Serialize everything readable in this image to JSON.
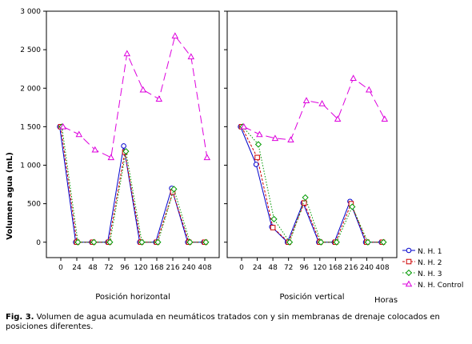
{
  "chart_data": {
    "type": "line",
    "ylabel": "Volumen agua (mL)",
    "x_unit_label": "Horas",
    "yticks": [
      "3 000",
      "2 500",
      "2 000",
      "1 500",
      "1 000",
      "500",
      "0"
    ],
    "ytick_values": [
      3000,
      2500,
      2000,
      1500,
      1000,
      500,
      0
    ],
    "ylim": [
      -200,
      3000
    ],
    "x_categories": [
      "0",
      "24",
      "48",
      "72",
      "96",
      "120",
      "168",
      "216",
      "240",
      "408"
    ],
    "series_names": [
      "N. H. 1",
      "N. H. 2",
      "N. H. 3",
      "N. H. Control"
    ],
    "series_colors": [
      "#0000cc",
      "#cc0000",
      "#009900",
      "#dd00dd"
    ],
    "legend_position": "bottom-right",
    "grid": false,
    "panels": [
      {
        "xlabel": "Posición horizontal",
        "series": [
          {
            "name": "N. H. 1",
            "values": [
              1500,
              0,
              0,
              0,
              1250,
              0,
              0,
              700,
              0,
              0
            ]
          },
          {
            "name": "N. H. 2",
            "values": [
              1500,
              0,
              0,
              0,
              1170,
              0,
              0,
              650,
              0,
              0
            ]
          },
          {
            "name": "N. H. 3",
            "values": [
              1500,
              0,
              0,
              0,
              1180,
              0,
              0,
              690,
              0,
              0
            ]
          },
          {
            "name": "N. H. Control",
            "values": [
              1500,
              1400,
              1200,
              1100,
              2450,
              1980,
              1860,
              2680,
              2410,
              1100
            ]
          }
        ]
      },
      {
        "xlabel": "Posición vertical",
        "series": [
          {
            "name": "N. H. 1",
            "values": [
              1500,
              1010,
              200,
              0,
              510,
              0,
              0,
              530,
              0,
              0
            ]
          },
          {
            "name": "N. H. 2",
            "values": [
              1500,
              1100,
              190,
              0,
              510,
              0,
              0,
              500,
              0,
              0
            ]
          },
          {
            "name": "N. H. 3",
            "values": [
              1500,
              1270,
              300,
              0,
              580,
              0,
              0,
              460,
              0,
              0
            ]
          },
          {
            "name": "N. H. Control",
            "values": [
              1500,
              1400,
              1350,
              1330,
              1840,
              1800,
              1600,
              2130,
              1980,
              1600
            ]
          }
        ]
      }
    ]
  },
  "caption": {
    "label": "Fig. 3.",
    "text": " Volumen de agua acumulada en neumáticos tratados con y sin membranas de drenaje colocados en posiciones diferentes."
  }
}
